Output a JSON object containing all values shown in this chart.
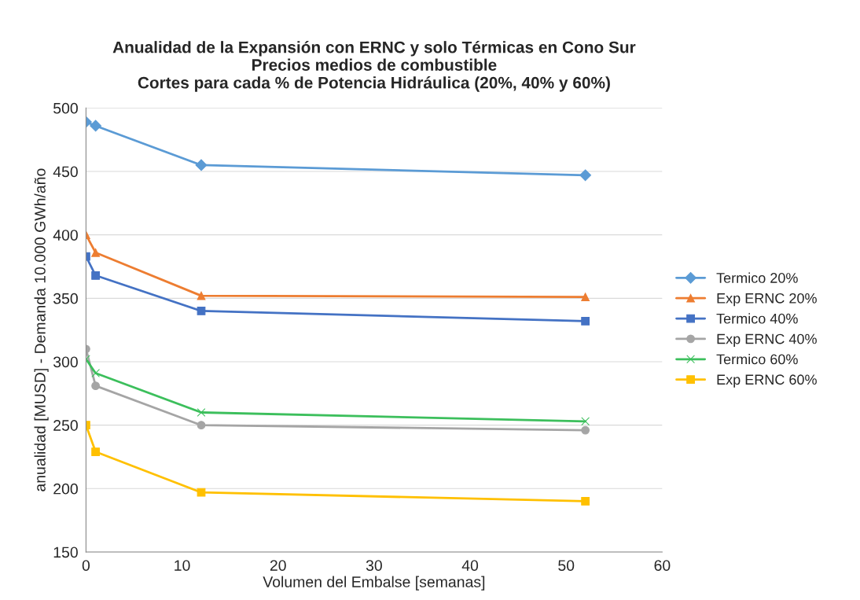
{
  "chart_data": {
    "type": "line",
    "title": "Anualidad de la Expansión con ERNC y solo Térmicas en Cono Sur\nPrecios medios de combustible\nCortes para cada % de Potencia Hidráulica (20%, 40% y 60%)",
    "xlabel": "Volumen del Embalse [semanas]",
    "ylabel": "anualidad [MUSD] - Demanda 10.000 GWh/año",
    "x": [
      0,
      1,
      12,
      52
    ],
    "series": [
      {
        "name": "Termico 20%",
        "color": "#5b9bd5",
        "marker": "diamond",
        "values": [
          489,
          486,
          455,
          447
        ]
      },
      {
        "name": "Exp ERNC 20%",
        "color": "#ed7d31",
        "marker": "triangle",
        "values": [
          400,
          386,
          352,
          351
        ]
      },
      {
        "name": "Termico 40%",
        "color": "#4472c4",
        "marker": "square",
        "values": [
          383,
          368,
          340,
          332
        ]
      },
      {
        "name": "Exp ERNC 40%",
        "color": "#a5a5a5",
        "marker": "circle",
        "values": [
          310,
          281,
          250,
          246
        ]
      },
      {
        "name": "Termico 60%",
        "color": "#3cbf5c",
        "marker": "cross",
        "values": [
          302,
          291,
          260,
          253
        ]
      },
      {
        "name": "Exp ERNC 60%",
        "color": "#ffc000",
        "marker": "square",
        "values": [
          250,
          229,
          197,
          190
        ]
      }
    ],
    "xlim": [
      0,
      60
    ],
    "xticks": [
      0,
      10,
      20,
      30,
      40,
      50,
      60
    ],
    "ylim": [
      150,
      500
    ],
    "yticks": [
      150,
      200,
      250,
      300,
      350,
      400,
      450,
      500
    ],
    "grid": "y",
    "legend": "right",
    "line_style": "solid"
  }
}
